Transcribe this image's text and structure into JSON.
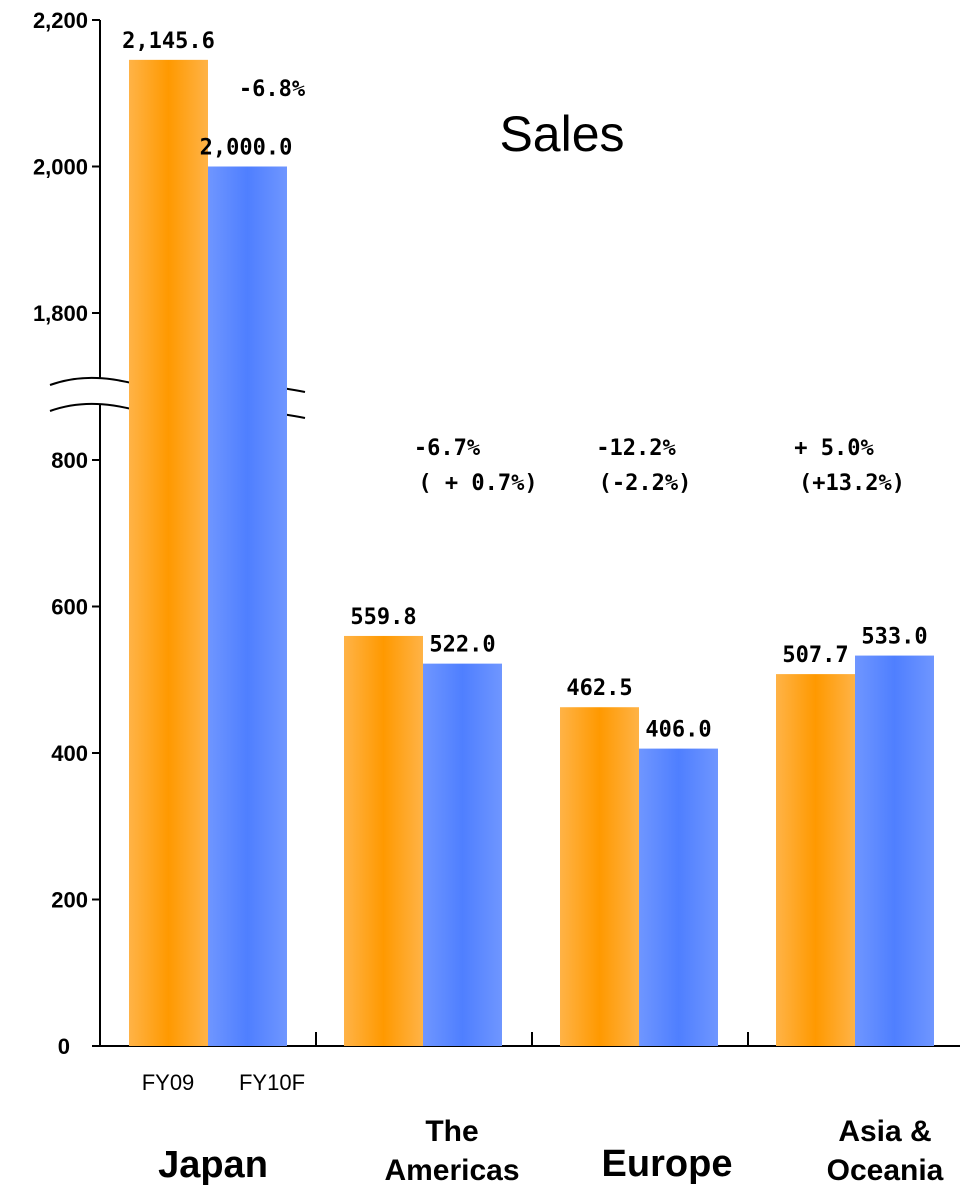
{
  "chart_data": {
    "type": "bar",
    "title": "Sales",
    "categories": [
      "Japan",
      "The Americas",
      "Europe",
      "Asia & Oceania"
    ],
    "category_lines": [
      [
        "Japan"
      ],
      [
        "The",
        "Americas"
      ],
      [
        "Europe"
      ],
      [
        "Asia &",
        "Oceania"
      ]
    ],
    "series": [
      {
        "name": "FY09",
        "color": "#ff9900",
        "values": [
          2145.6,
          559.8,
          462.5,
          507.7
        ],
        "labels": [
          "2,145.6",
          "559.8",
          "462.5",
          "507.7"
        ]
      },
      {
        "name": "FY10F",
        "color": "#4f7fff",
        "values": [
          2000.0,
          522.0,
          406.0,
          533.0
        ],
        "labels": [
          "2,000.0",
          "522.0",
          "406.0",
          "533.0"
        ]
      }
    ],
    "change_labels": [
      [
        "-6.8%"
      ],
      [
        "-6.7%",
        "( + 0.7%)"
      ],
      [
        "-12.2%",
        "(-2.2%)"
      ],
      [
        "+ 5.0%",
        "(+13.2%)"
      ]
    ],
    "y_ticks_lower": [
      0,
      200,
      400,
      600,
      800
    ],
    "y_ticks_upper": [
      1800,
      2000,
      2200
    ],
    "y_tick_labels_lower": [
      "0",
      "200",
      "400",
      "600",
      "800"
    ],
    "y_tick_labels_upper": [
      "1,800",
      "2,000",
      "2,200"
    ],
    "axis_break": true,
    "ylim_lower": [
      0,
      800
    ],
    "ylim_upper": [
      1800,
      2200
    ],
    "legend": "series names shown under first category",
    "grid": false
  }
}
